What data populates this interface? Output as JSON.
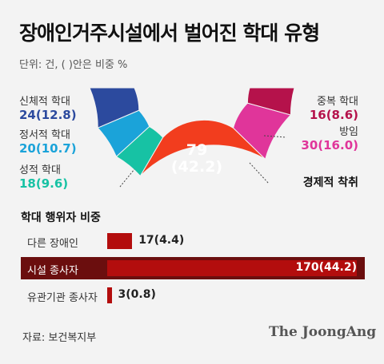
{
  "title": "장애인거주시설에서 벌어진 학대 유형",
  "unit_note": "단위: 건, (   )안은 비중 %",
  "source": "자료: 보건복지부",
  "logo": "The JoongAng",
  "colors": {
    "background": "#f3f3f3",
    "physical": "#2c4a9e",
    "emotional": "#1ba3d9",
    "sexual": "#17c2a4",
    "economic": "#f23d1e",
    "neglect": "#e0359a",
    "multiple": "#b5124b",
    "bar": "#b30d0d",
    "bar_highlight_row": "#6b0e0e"
  },
  "chart_data": [
    {
      "type": "pie",
      "style": "half-donut",
      "title": "",
      "slices": [
        {
          "label": "신체적 학대",
          "value": 24,
          "percent": 12.8,
          "value_text": "24(12.8)",
          "color": "#2c4a9e"
        },
        {
          "label": "정서적 학대",
          "value": 20,
          "percent": 10.7,
          "value_text": "20(10.7)",
          "color": "#1ba3d9"
        },
        {
          "label": "성적 학대",
          "value": 18,
          "percent": 9.6,
          "value_text": "18(9.6)",
          "color": "#17c2a4"
        },
        {
          "label": "경제적 착취",
          "value": 79,
          "percent": 42.2,
          "value_text_count": "79",
          "value_text_pct": "(42.2)",
          "color": "#f23d1e"
        },
        {
          "label": "방임",
          "value": 30,
          "percent": 16.0,
          "value_text": "30(16.0)",
          "color": "#e0359a"
        },
        {
          "label": "중복 학대",
          "value": 16,
          "percent": 8.6,
          "value_text": "16(8.6)",
          "color": "#b5124b"
        }
      ]
    },
    {
      "type": "bar",
      "orientation": "horizontal",
      "title": "학대 행위자 비중",
      "categories": [
        "다른 장애인",
        "시설 종사자",
        "유관기관 종사자"
      ],
      "values": [
        17,
        170,
        3
      ],
      "percents": [
        4.4,
        44.2,
        0.8
      ],
      "value_labels": [
        "17(4.4)",
        "170(44.2)",
        "3(0.8)"
      ]
    }
  ]
}
